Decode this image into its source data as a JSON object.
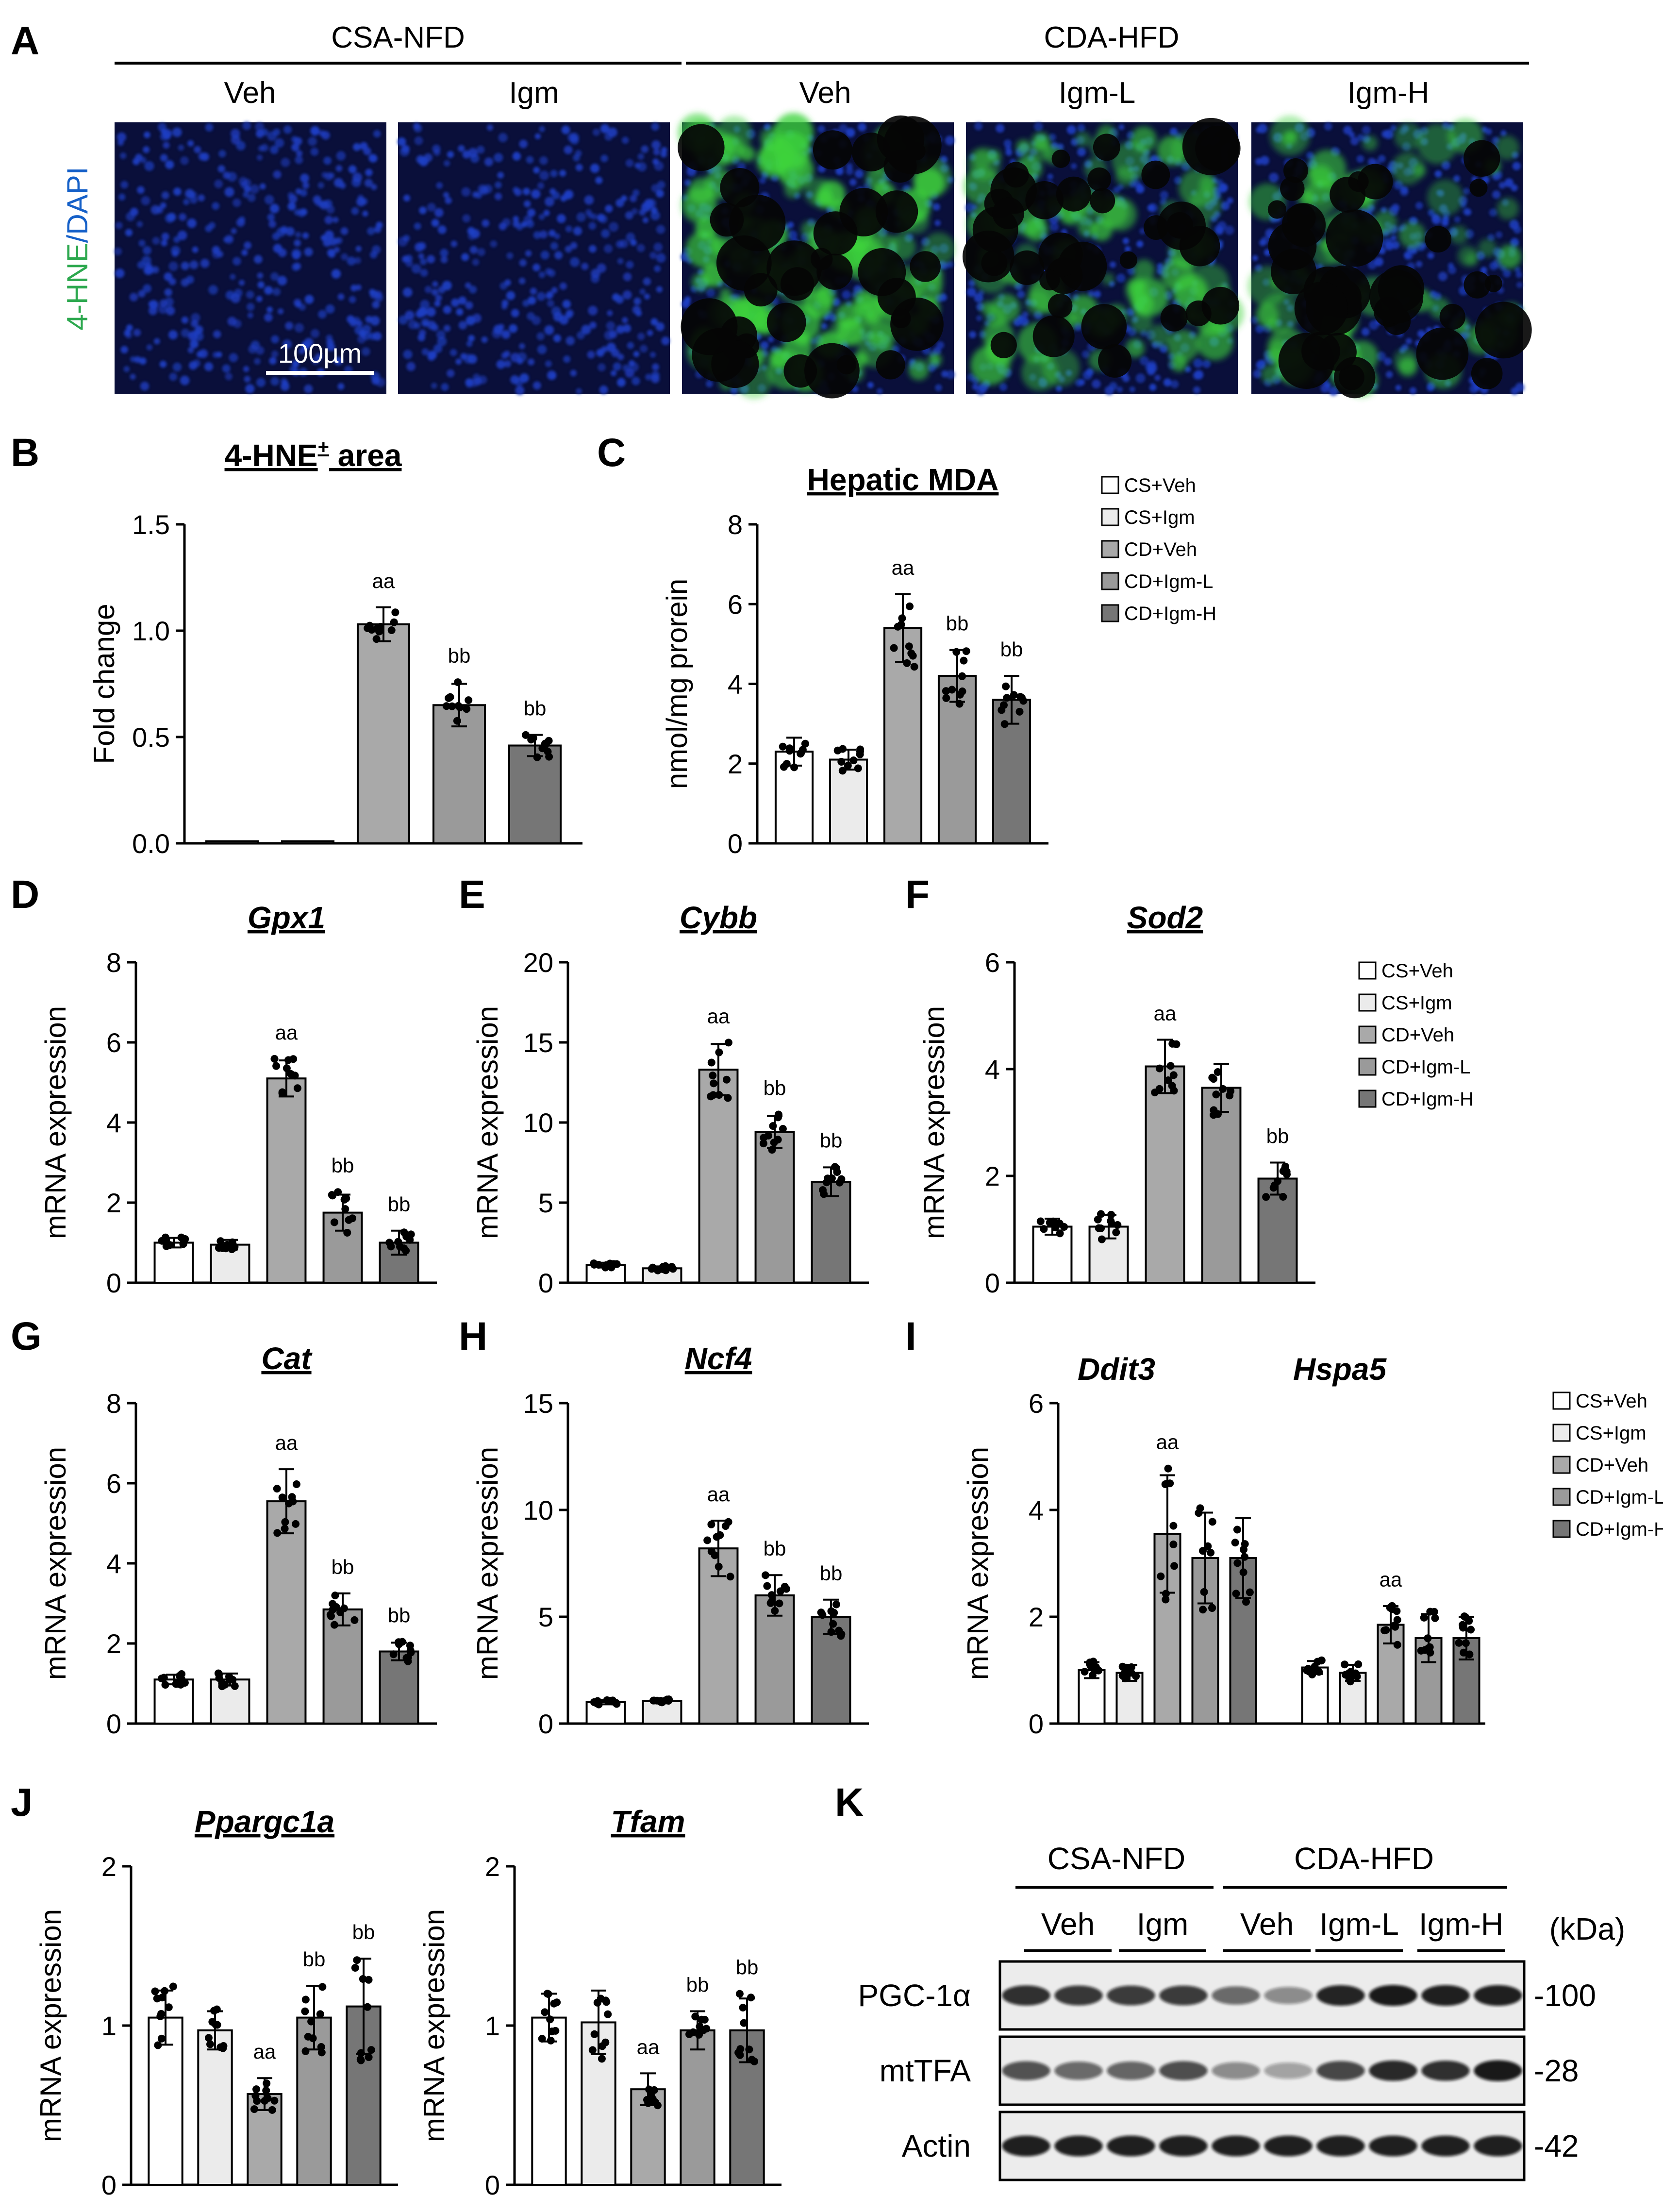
{
  "figure": {
    "panel_letters": [
      "A",
      "B",
      "C",
      "D",
      "E",
      "F",
      "G",
      "H",
      "I",
      "J",
      "K"
    ],
    "groups": [
      "CS+Veh",
      "CS+Igm",
      "CD+Veh",
      "CD+Igm-L",
      "CD+Igm-H"
    ],
    "group_colors": [
      "#ffffff",
      "#ebebeb",
      "#a9a9a9",
      "#9a9a9a",
      "#767676"
    ]
  },
  "panelA": {
    "diet_headers": [
      "CSA-NFD",
      "CDA-HFD"
    ],
    "columns": [
      "Veh",
      "Igm",
      "Veh",
      "Igm-L",
      "Igm-H"
    ],
    "stain_label_green": "4-HNE",
    "stain_label_sep": "/",
    "stain_label_blue": "DAPI",
    "scale_bar": "100µm",
    "colors": {
      "dapi": "#1f3fc4",
      "hne": "#3ed43c",
      "background": "#0a0f3a"
    }
  },
  "chart_data": [
    {
      "id": "B",
      "type": "bar",
      "title_main": "4-HNE",
      "title_sup": "+",
      "title_rest": " area",
      "ylabel": "Fold change",
      "ylim": [
        0,
        1.5
      ],
      "yticks": [
        "0.0",
        "0.5",
        "1.0",
        "1.5"
      ],
      "categories": [
        "CS+Veh",
        "CS+Igm",
        "CD+Veh",
        "CD+Igm-L",
        "CD+Igm-H"
      ],
      "values": [
        0.01,
        0.01,
        1.03,
        0.65,
        0.46
      ],
      "errors": [
        0,
        0,
        0.08,
        0.1,
        0.05
      ],
      "sig": [
        "",
        "",
        "aa",
        "bb",
        "bb"
      ]
    },
    {
      "id": "C",
      "type": "bar",
      "title": "Hepatic MDA",
      "ylabel": "nmol/mg prorein",
      "ylim": [
        0,
        8
      ],
      "yticks": [
        "0",
        "2",
        "4",
        "6",
        "8"
      ],
      "categories": [
        "CS+Veh",
        "CS+Igm",
        "CD+Veh",
        "CD+Igm-L",
        "CD+Igm-H"
      ],
      "values": [
        2.3,
        2.1,
        5.4,
        4.2,
        3.6
      ],
      "errors": [
        0.35,
        0.25,
        0.85,
        0.65,
        0.6
      ],
      "sig": [
        "",
        "",
        "aa",
        "bb",
        "bb"
      ]
    },
    {
      "id": "D",
      "type": "bar",
      "title": "Gpx1",
      "ylabel": "mRNA expression",
      "ylim": [
        0,
        8
      ],
      "yticks": [
        "0",
        "2",
        "4",
        "6",
        "8"
      ],
      "categories": [
        "CS+Veh",
        "CS+Igm",
        "CD+Veh",
        "CD+Igm-L",
        "CD+Igm-H"
      ],
      "values": [
        1.0,
        0.95,
        5.1,
        1.75,
        1.0
      ],
      "errors": [
        0.12,
        0.12,
        0.45,
        0.45,
        0.3
      ],
      "sig": [
        "",
        "",
        "aa",
        "bb",
        "bb"
      ]
    },
    {
      "id": "E",
      "type": "bar",
      "title": "Cybb",
      "ylabel": "mRNA expression",
      "ylim": [
        0,
        20
      ],
      "yticks": [
        "0",
        "5",
        "10",
        "15",
        "20"
      ],
      "categories": [
        "CS+Veh",
        "CS+Igm",
        "CD+Veh",
        "CD+Igm-L",
        "CD+Igm-H"
      ],
      "values": [
        1.1,
        0.9,
        13.3,
        9.4,
        6.3
      ],
      "errors": [
        0.15,
        0.12,
        1.6,
        1.0,
        0.9
      ],
      "sig": [
        "",
        "",
        "aa",
        "bb",
        "bb"
      ]
    },
    {
      "id": "F",
      "type": "bar",
      "title": "Sod2",
      "ylabel": "mRNA expression",
      "ylim": [
        0,
        6
      ],
      "yticks": [
        "0",
        "2",
        "4",
        "6"
      ],
      "categories": [
        "CS+Veh",
        "CS+Igm",
        "CD+Veh",
        "CD+Igm-L",
        "CD+Igm-H"
      ],
      "values": [
        1.05,
        1.05,
        4.05,
        3.65,
        1.95
      ],
      "errors": [
        0.15,
        0.22,
        0.5,
        0.45,
        0.3
      ],
      "sig": [
        "",
        "",
        "aa",
        "",
        "bb"
      ]
    },
    {
      "id": "G",
      "type": "bar",
      "title": "Cat",
      "ylabel": "mRNA expression",
      "ylim": [
        0,
        8
      ],
      "yticks": [
        "0",
        "2",
        "4",
        "6",
        "8"
      ],
      "categories": [
        "CS+Veh",
        "CS+Igm",
        "CD+Veh",
        "CD+Igm-L",
        "CD+Igm-H"
      ],
      "values": [
        1.1,
        1.1,
        5.55,
        2.85,
        1.8
      ],
      "errors": [
        0.12,
        0.15,
        0.8,
        0.4,
        0.22
      ],
      "sig": [
        "",
        "",
        "aa",
        "bb",
        "bb"
      ]
    },
    {
      "id": "H",
      "type": "bar",
      "title": "Ncf4",
      "ylabel": "mRNA expression",
      "ylim": [
        0,
        15
      ],
      "yticks": [
        "0",
        "5",
        "10",
        "15"
      ],
      "categories": [
        "CS+Veh",
        "CS+Igm",
        "CD+Veh",
        "CD+Igm-L",
        "CD+Igm-H"
      ],
      "values": [
        1.0,
        1.05,
        8.2,
        6.0,
        5.0
      ],
      "errors": [
        0.1,
        0.1,
        1.3,
        0.95,
        0.8
      ],
      "sig": [
        "",
        "",
        "aa",
        "bb",
        "bb"
      ]
    },
    {
      "id": "I",
      "type": "bar",
      "ylabel": "mRNA expression",
      "ylim": [
        0,
        6
      ],
      "yticks": [
        "0",
        "2",
        "4",
        "6"
      ],
      "gene_labels": [
        "Ddit3",
        "Hspa5"
      ],
      "series": [
        {
          "gene": "Ddit3",
          "values": [
            1.0,
            0.95,
            3.55,
            3.1,
            3.1
          ],
          "errors": [
            0.15,
            0.15,
            1.1,
            0.85,
            0.75
          ],
          "sig": [
            "",
            "",
            "aa",
            "",
            ""
          ]
        },
        {
          "gene": "Hspa5",
          "values": [
            1.05,
            0.95,
            1.85,
            1.6,
            1.6
          ],
          "errors": [
            0.12,
            0.15,
            0.35,
            0.45,
            0.4
          ],
          "sig": [
            "",
            "",
            "aa",
            "",
            ""
          ]
        }
      ],
      "categories": [
        "CS+Veh",
        "CS+Igm",
        "CD+Veh",
        "CD+Igm-L",
        "CD+Igm-H"
      ]
    },
    {
      "id": "J1",
      "type": "bar",
      "title": "Ppargc1a",
      "ylabel": "mRNA expression",
      "ylim": [
        0,
        2
      ],
      "yticks": [
        "0",
        "1",
        "2"
      ],
      "categories": [
        "CS+Veh",
        "CS+Igm",
        "CD+Veh",
        "CD+Igm-L",
        "CD+Igm-H"
      ],
      "values": [
        1.05,
        0.97,
        0.57,
        1.05,
        1.12
      ],
      "errors": [
        0.17,
        0.12,
        0.1,
        0.2,
        0.3
      ],
      "sig": [
        "",
        "",
        "aa",
        "bb",
        "bb"
      ]
    },
    {
      "id": "J2",
      "type": "bar",
      "title": "Tfam",
      "ylabel": "mRNA expression",
      "ylim": [
        0,
        2
      ],
      "yticks": [
        "0",
        "1",
        "2"
      ],
      "categories": [
        "CS+Veh",
        "CS+Igm",
        "CD+Veh",
        "CD+Igm-L",
        "CD+Igm-H"
      ],
      "values": [
        1.05,
        1.02,
        0.6,
        0.97,
        0.97
      ],
      "errors": [
        0.15,
        0.2,
        0.1,
        0.12,
        0.2
      ],
      "sig": [
        "",
        "",
        "aa",
        "bb",
        "bb"
      ]
    }
  ],
  "legend": {
    "entries": [
      "CS+Veh",
      "CS+Igm",
      "CD+Veh",
      "CD+Igm-L",
      "CD+Igm-H"
    ]
  },
  "panelK": {
    "diet_headers": [
      "CSA-NFD",
      "CDA-HFD"
    ],
    "lanes": [
      "Veh",
      "Igm",
      "Veh",
      "Igm-L",
      "Igm-H"
    ],
    "unit": "(kDa)",
    "blots": [
      {
        "name": "PGC-1α",
        "kda": "-100",
        "intensity": [
          0.85,
          0.82,
          0.8,
          0.8,
          0.6,
          0.45,
          0.9,
          0.95,
          0.92,
          0.92
        ]
      },
      {
        "name": "mtTFA",
        "kda": "-28",
        "intensity": [
          0.7,
          0.6,
          0.62,
          0.72,
          0.45,
          0.35,
          0.75,
          0.88,
          0.85,
          0.95
        ]
      },
      {
        "name": "Actin",
        "kda": "-42",
        "intensity": [
          0.92,
          0.92,
          0.92,
          0.92,
          0.92,
          0.92,
          0.92,
          0.92,
          0.92,
          0.92
        ]
      }
    ]
  }
}
